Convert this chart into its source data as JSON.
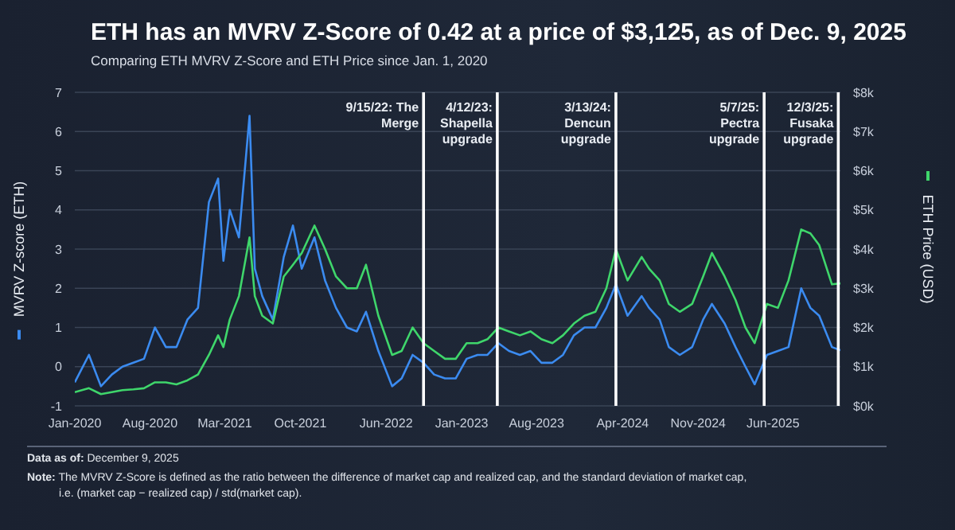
{
  "chart_data": {
    "type": "line",
    "title": "ETH has an MVRV Z-Score of 0.42 at a price of $3,125, as of Dec. 9, 2025",
    "subtitle": "Comparing ETH MVRV Z-Score and ETH Price since Jan. 1, 2020",
    "ylabel": "MVRV Z-score (ETH)",
    "y2label": "ETH Price (USD)",
    "x": [
      "2020-01-01",
      "2020-02-10",
      "2020-03-15",
      "2020-04-15",
      "2020-05-15",
      "2020-06-15",
      "2020-07-15",
      "2020-08-15",
      "2020-09-15",
      "2020-10-15",
      "2020-11-15",
      "2020-12-15",
      "2021-01-15",
      "2021-02-10",
      "2021-02-25",
      "2021-03-15",
      "2021-04-10",
      "2021-05-10",
      "2021-05-25",
      "2021-06-15",
      "2021-07-15",
      "2021-08-15",
      "2021-09-10",
      "2021-10-05",
      "2021-11-10",
      "2021-12-10",
      "2022-01-10",
      "2022-02-10",
      "2022-03-10",
      "2022-04-05",
      "2022-05-10",
      "2022-06-18",
      "2022-07-15",
      "2022-08-15",
      "2022-09-15",
      "2022-10-15",
      "2022-11-15",
      "2022-12-15",
      "2023-01-15",
      "2023-02-15",
      "2023-03-15",
      "2023-04-15",
      "2023-05-15",
      "2023-06-15",
      "2023-07-15",
      "2023-08-15",
      "2023-09-15",
      "2023-10-15",
      "2023-11-15",
      "2023-12-15",
      "2024-01-15",
      "2024-02-15",
      "2024-03-13",
      "2024-04-15",
      "2024-05-25",
      "2024-06-15",
      "2024-07-15",
      "2024-08-10",
      "2024-09-10",
      "2024-10-15",
      "2024-11-15",
      "2024-12-10",
      "2025-01-15",
      "2025-02-15",
      "2025-03-15",
      "2025-04-10",
      "2025-05-15",
      "2025-06-15",
      "2025-07-15",
      "2025-08-20",
      "2025-09-15",
      "2025-10-10",
      "2025-11-15",
      "2025-12-09"
    ],
    "series": [
      {
        "color": "#3b8bf0",
        "values": [
          -0.4,
          0.3,
          -0.5,
          -0.2,
          0.0,
          0.1,
          0.2,
          1.0,
          0.5,
          0.5,
          1.2,
          1.5,
          4.2,
          4.8,
          2.7,
          4.0,
          3.3,
          6.4,
          2.5,
          1.8,
          1.2,
          2.8,
          3.6,
          2.5,
          3.3,
          2.2,
          1.5,
          1.0,
          0.9,
          1.4,
          0.4,
          -0.5,
          -0.3,
          0.3,
          0.1,
          -0.2,
          -0.3,
          -0.3,
          0.2,
          0.3,
          0.3,
          0.6,
          0.4,
          0.3,
          0.4,
          0.1,
          0.1,
          0.3,
          0.8,
          1.0,
          1.0,
          1.5,
          2.1,
          1.3,
          1.8,
          1.5,
          1.2,
          0.5,
          0.3,
          0.5,
          1.2,
          1.6,
          1.1,
          0.5,
          0.0,
          -0.45,
          0.3,
          0.4,
          0.5,
          2.0,
          1.5,
          1.3,
          0.5,
          0.42
        ]
      },
      {
        "color": "#3fd66b",
        "axis": "y2",
        "values": [
          350,
          450,
          300,
          350,
          400,
          420,
          450,
          600,
          600,
          550,
          650,
          800,
          1300,
          1800,
          1500,
          2200,
          2800,
          4300,
          2800,
          2300,
          2100,
          3300,
          3600,
          3900,
          4600,
          4000,
          3300,
          3000,
          3000,
          3600,
          2300,
          1300,
          1400,
          2000,
          1600,
          1400,
          1200,
          1200,
          1600,
          1600,
          1700,
          2000,
          1900,
          1800,
          1900,
          1700,
          1600,
          1800,
          2100,
          2300,
          2400,
          3000,
          4000,
          3200,
          3800,
          3500,
          3200,
          2600,
          2400,
          2600,
          3300,
          3900,
          3300,
          2700,
          2000,
          1600,
          2600,
          2500,
          3200,
          4500,
          4400,
          4100,
          3100,
          3125
        ]
      }
    ],
    "xlim": [
      "2020-01-01",
      "2025-12-09"
    ],
    "xticks": [
      {
        "value": "2020-01-01",
        "label": "Jan-2020"
      },
      {
        "value": "2020-08-01",
        "label": "Aug-2020"
      },
      {
        "value": "2021-03-01",
        "label": "Mar-2021"
      },
      {
        "value": "2021-10-01",
        "label": "Oct-2021"
      },
      {
        "value": "2022-06-01",
        "label": "Jun-2022"
      },
      {
        "value": "2023-01-01",
        "label": "Jan-2023"
      },
      {
        "value": "2023-08-01",
        "label": "Aug-2023"
      },
      {
        "value": "2024-04-01",
        "label": "Apr-2024"
      },
      {
        "value": "2024-11-01",
        "label": "Nov-2024"
      },
      {
        "value": "2025-06-01",
        "label": "Jun-2025"
      }
    ],
    "ylim": [
      -1,
      7
    ],
    "yticks": [
      -1,
      0,
      1,
      2,
      3,
      4,
      5,
      6,
      7
    ],
    "y2lim": [
      0,
      8000
    ],
    "y2ticks": [
      {
        "value": 0,
        "label": "$0k"
      },
      {
        "value": 1000,
        "label": "$1k"
      },
      {
        "value": 2000,
        "label": "$2k"
      },
      {
        "value": 3000,
        "label": "$3k"
      },
      {
        "value": 4000,
        "label": "$4k"
      },
      {
        "value": 5000,
        "label": "$5k"
      },
      {
        "value": 6000,
        "label": "$6k"
      },
      {
        "value": 7000,
        "label": "$7k"
      },
      {
        "value": 8000,
        "label": "$8k"
      }
    ],
    "grid": "y",
    "legend": false,
    "marker": "none",
    "line_style": "solid",
    "ref_lines": [
      {
        "axis": "x",
        "value": "2022-09-15",
        "label": "9/15/22: The Merge",
        "color": "#ffffff"
      },
      {
        "axis": "x",
        "value": "2023-04-12",
        "label": "4/12/23: Shapella upgrade",
        "color": "#ffffff"
      },
      {
        "axis": "x",
        "value": "2024-03-13",
        "label": "3/13/24: Dencun upgrade",
        "color": "#ffffff"
      },
      {
        "axis": "x",
        "value": "2025-05-07",
        "label": "5/7/25: Pectra upgrade",
        "color": "#ffffff"
      },
      {
        "axis": "x",
        "value": "2025-12-03",
        "label": "12/3/25: Fusaka upgrade",
        "color": "#ffffff"
      }
    ],
    "annotations": [
      "Data as of: December 9, 2025",
      "Note: The MVRV Z-Score is defined as the ratio between the difference of market cap and realized cap, and the standard deviation of market cap, i.e. (market cap − realized cap) / std(market cap)."
    ]
  }
}
